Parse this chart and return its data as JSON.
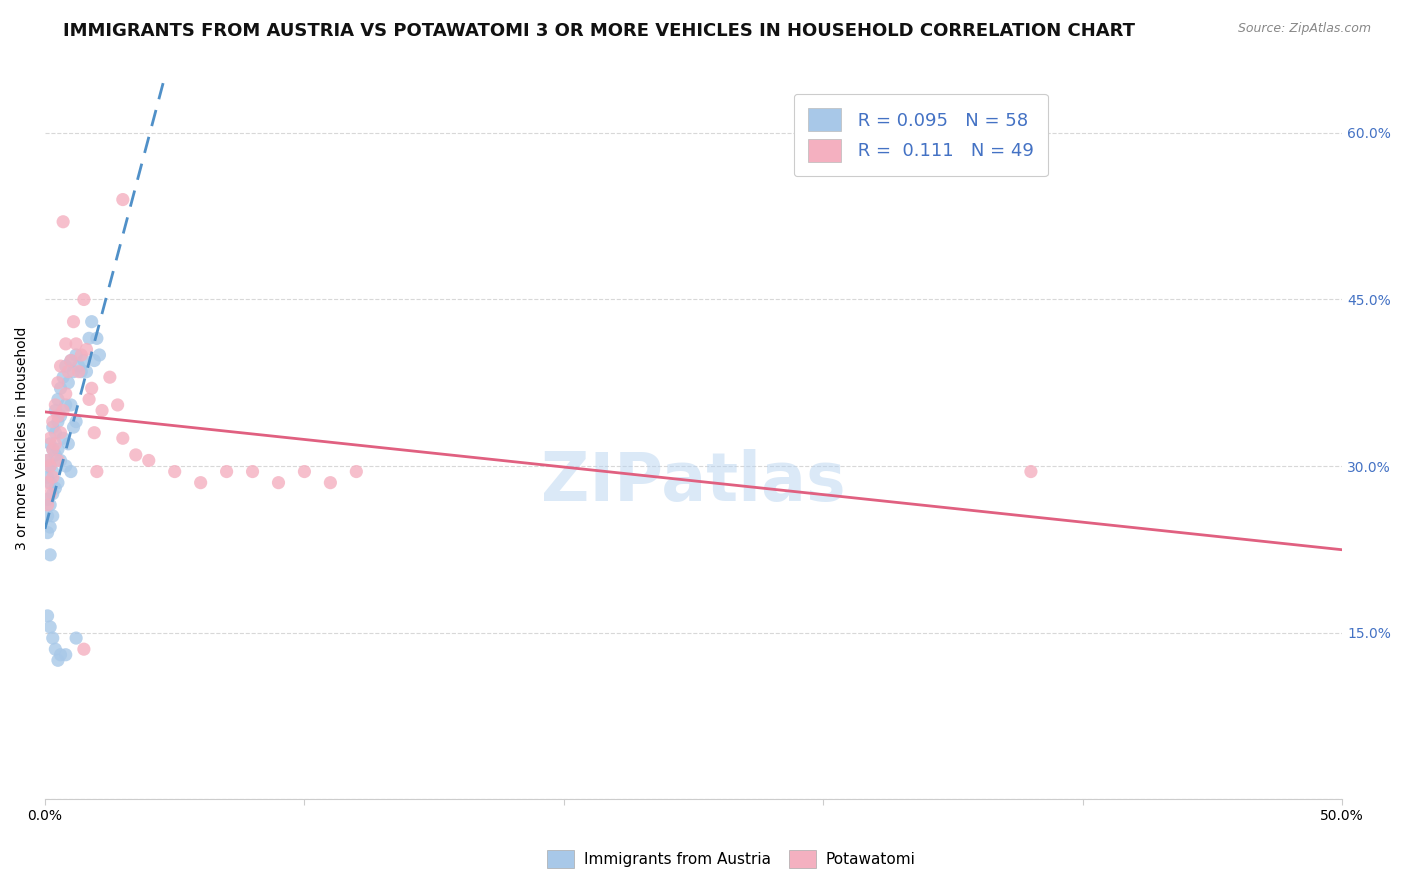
{
  "title": "IMMIGRANTS FROM AUSTRIA VS POTAWATOMI 3 OR MORE VEHICLES IN HOUSEHOLD CORRELATION CHART",
  "source": "Source: ZipAtlas.com",
  "ylabel": "3 or more Vehicles in Household",
  "xlim": [
    0.0,
    0.5
  ],
  "ylim": [
    0.0,
    0.65
  ],
  "ytick_labels": [
    "",
    "15.0%",
    "30.0%",
    "45.0%",
    "60.0%"
  ],
  "ytick_values": [
    0.0,
    0.15,
    0.3,
    0.45,
    0.6
  ],
  "xtick_labels": [
    "0.0%",
    "",
    "",
    "",
    "",
    "50.0%"
  ],
  "xtick_values": [
    0.0,
    0.1,
    0.2,
    0.3,
    0.4,
    0.5
  ],
  "blue_x": [
    0.001,
    0.001,
    0.001,
    0.001,
    0.001,
    0.002,
    0.002,
    0.002,
    0.002,
    0.002,
    0.002,
    0.003,
    0.003,
    0.003,
    0.003,
    0.003,
    0.004,
    0.004,
    0.004,
    0.004,
    0.005,
    0.005,
    0.005,
    0.005,
    0.006,
    0.006,
    0.006,
    0.007,
    0.007,
    0.008,
    0.008,
    0.008,
    0.009,
    0.009,
    0.01,
    0.01,
    0.01,
    0.011,
    0.011,
    0.012,
    0.012,
    0.013,
    0.014,
    0.015,
    0.016,
    0.017,
    0.018,
    0.019,
    0.02,
    0.021,
    0.001,
    0.002,
    0.003,
    0.004,
    0.005,
    0.006,
    0.008,
    0.012
  ],
  "blue_y": [
    0.305,
    0.29,
    0.27,
    0.255,
    0.24,
    0.32,
    0.3,
    0.285,
    0.265,
    0.245,
    0.22,
    0.335,
    0.315,
    0.295,
    0.275,
    0.255,
    0.35,
    0.33,
    0.31,
    0.28,
    0.36,
    0.34,
    0.315,
    0.285,
    0.37,
    0.345,
    0.305,
    0.38,
    0.325,
    0.39,
    0.355,
    0.3,
    0.375,
    0.32,
    0.395,
    0.355,
    0.295,
    0.385,
    0.335,
    0.4,
    0.34,
    0.39,
    0.385,
    0.395,
    0.385,
    0.415,
    0.43,
    0.395,
    0.415,
    0.4,
    0.165,
    0.155,
    0.145,
    0.135,
    0.125,
    0.13,
    0.13,
    0.145
  ],
  "pink_x": [
    0.001,
    0.001,
    0.001,
    0.002,
    0.002,
    0.002,
    0.003,
    0.003,
    0.003,
    0.004,
    0.004,
    0.005,
    0.005,
    0.005,
    0.006,
    0.006,
    0.007,
    0.007,
    0.008,
    0.008,
    0.009,
    0.01,
    0.011,
    0.012,
    0.013,
    0.014,
    0.015,
    0.016,
    0.017,
    0.018,
    0.019,
    0.02,
    0.022,
    0.025,
    0.028,
    0.03,
    0.035,
    0.04,
    0.05,
    0.06,
    0.07,
    0.08,
    0.09,
    0.1,
    0.11,
    0.12,
    0.38,
    0.015,
    0.03
  ],
  "pink_y": [
    0.305,
    0.285,
    0.265,
    0.325,
    0.3,
    0.275,
    0.34,
    0.315,
    0.29,
    0.355,
    0.32,
    0.375,
    0.345,
    0.305,
    0.39,
    0.33,
    0.52,
    0.35,
    0.41,
    0.365,
    0.385,
    0.395,
    0.43,
    0.41,
    0.385,
    0.4,
    0.45,
    0.405,
    0.36,
    0.37,
    0.33,
    0.295,
    0.35,
    0.38,
    0.355,
    0.325,
    0.31,
    0.305,
    0.295,
    0.285,
    0.295,
    0.295,
    0.285,
    0.295,
    0.285,
    0.295,
    0.295,
    0.135,
    0.54
  ],
  "blue_color": "#a8c8e8",
  "pink_color": "#f4b0c0",
  "blue_line_color": "#5090c8",
  "pink_line_color": "#e06080",
  "blue_line_dash": [
    6,
    4
  ],
  "grid_color": "#d8d8d8",
  "background_color": "#ffffff",
  "right_tick_color": "#4472c4",
  "title_fontsize": 13,
  "axis_label_fontsize": 10,
  "tick_fontsize": 10,
  "marker_size": 90,
  "marker_alpha": 0.8,
  "legend_R_blue": "R = 0.095",
  "legend_N_blue": "N = 58",
  "legend_R_pink": "R =  0.111",
  "legend_N_pink": "N = 49",
  "watermark": "ZIPatlas",
  "watermark_color": "#b8d4f0",
  "bottom_legend_labels": [
    "Immigrants from Austria",
    "Potawatomi"
  ]
}
